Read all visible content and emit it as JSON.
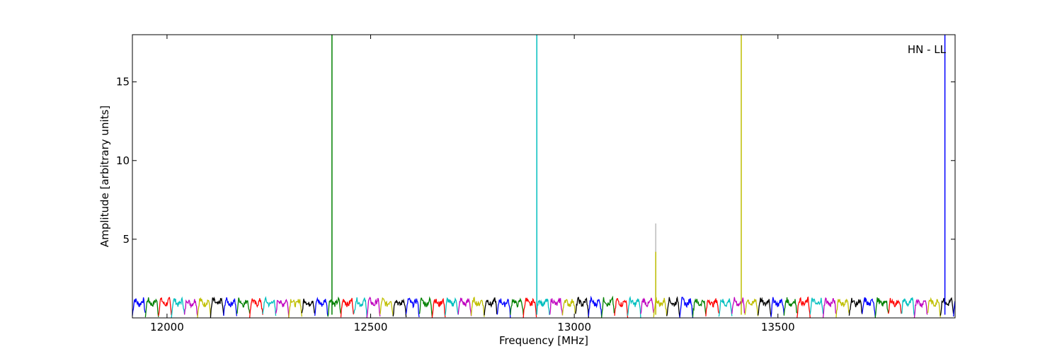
{
  "chart_data": {
    "type": "line",
    "xlabel": "Frequency [MHz]",
    "ylabel": "Amplitude [arbitrary units]",
    "annotation": "HN - LL",
    "xlim": [
      11915,
      13935
    ],
    "ylim": [
      0,
      18
    ],
    "xticks": [
      12000,
      12500,
      13000,
      13500
    ],
    "yticks": [
      5,
      10,
      15
    ],
    "grid": false,
    "channel_width_mhz": 32,
    "colors": [
      "#0000ff",
      "#008000",
      "#ff0000",
      "#00bfbf",
      "#bf00bf",
      "#bfbf00",
      "#000000"
    ],
    "spikes": [
      {
        "x": 12405,
        "y": 18,
        "color": "#008000"
      },
      {
        "x": 12908,
        "y": 18,
        "color": "#00bfbf"
      },
      {
        "x": 13200,
        "y": 6.0,
        "color": "#bbbbbb"
      },
      {
        "x": 13200,
        "y": 4.2,
        "color": "#bfbf00"
      },
      {
        "x": 13410,
        "y": 18,
        "color": "#bfbf00"
      },
      {
        "x": 13910,
        "y": 18,
        "color": "#0000ff"
      }
    ]
  }
}
